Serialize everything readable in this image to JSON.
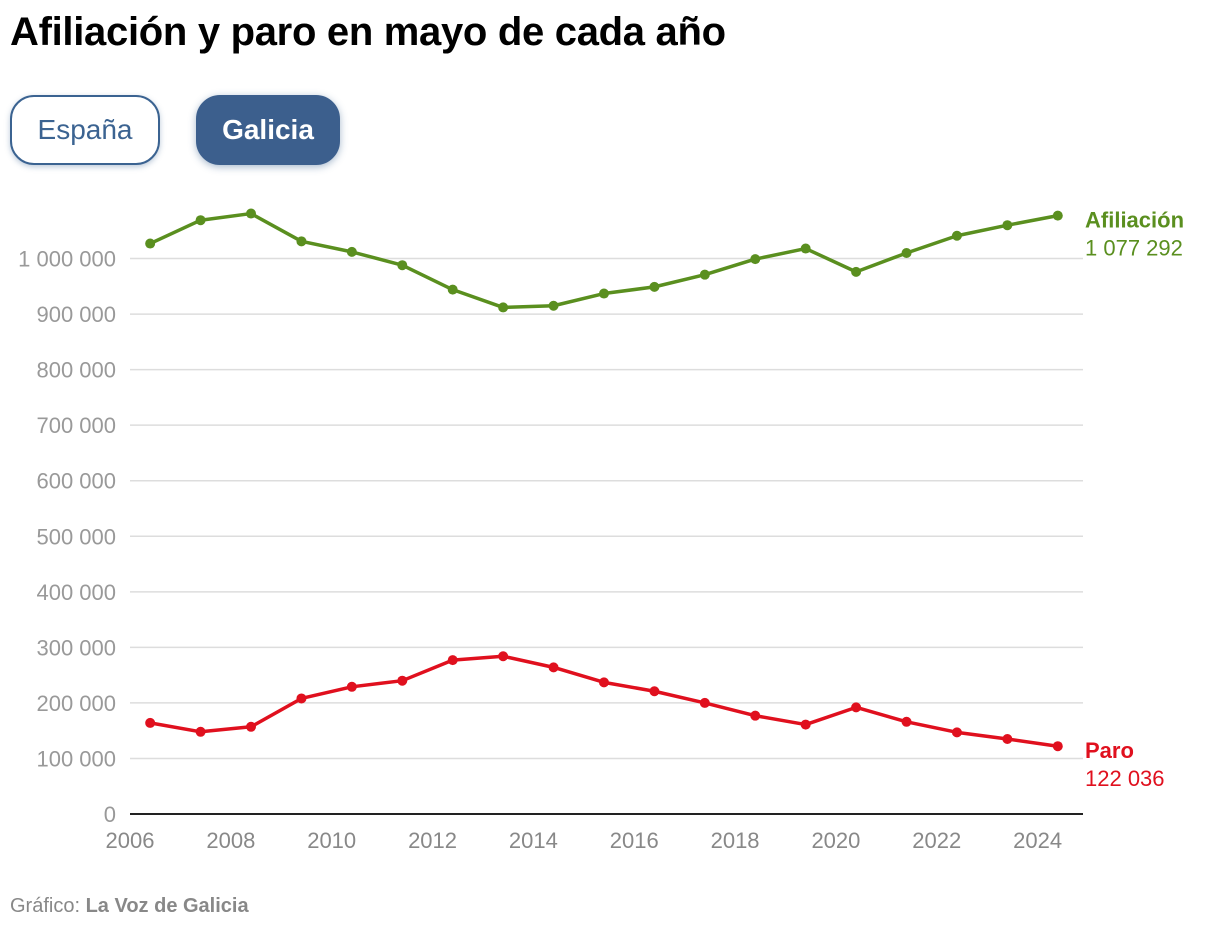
{
  "title": "Afiliación y paro en mayo de cada año",
  "tabs": [
    {
      "label": "España",
      "active": false
    },
    {
      "label": "Galicia",
      "active": true
    }
  ],
  "footer": {
    "prefix": "Gráfico: ",
    "source": "La Voz de Galicia"
  },
  "colors": {
    "afiliacion": "#5a8f1f",
    "paro": "#e0101e",
    "grid": "#dddddd",
    "axis": "#222222",
    "tick": "#999999",
    "tab": "#3c5f8d"
  },
  "chart_data": {
    "type": "line",
    "x": [
      2006.4,
      2007.4,
      2008.4,
      2009.4,
      2010.4,
      2011.4,
      2012.4,
      2013.4,
      2014.4,
      2015.4,
      2016.4,
      2017.4,
      2018.4,
      2019.4,
      2020.4,
      2021.4,
      2022.4,
      2023.4,
      2024.4
    ],
    "xticks": [
      "2006",
      "2008",
      "2010",
      "2012",
      "2014",
      "2016",
      "2018",
      "2020",
      "2022",
      "2024"
    ],
    "xlim": [
      2006,
      2024.9
    ],
    "ylim": [
      0,
      1100000
    ],
    "yticks": [
      "0",
      "100 000",
      "200 000",
      "300 000",
      "400 000",
      "500 000",
      "600 000",
      "700 000",
      "800 000",
      "900 000",
      "1 000 000"
    ],
    "grid": true,
    "series": [
      {
        "name": "Afiliación",
        "last_label": "1 077 292",
        "color": "#5a8f1f",
        "values": [
          1027000,
          1069000,
          1081000,
          1031000,
          1012000,
          988000,
          944000,
          912000,
          915000,
          937000,
          949000,
          971000,
          999000,
          1018000,
          976000,
          1010000,
          1041000,
          1060000,
          1077292
        ]
      },
      {
        "name": "Paro",
        "last_label": "122 036",
        "color": "#e0101e",
        "values": [
          164000,
          148000,
          157000,
          208000,
          229000,
          240000,
          277000,
          284000,
          264000,
          237000,
          221000,
          200000,
          177000,
          161000,
          192000,
          166000,
          147000,
          135000,
          122036
        ]
      }
    ]
  }
}
